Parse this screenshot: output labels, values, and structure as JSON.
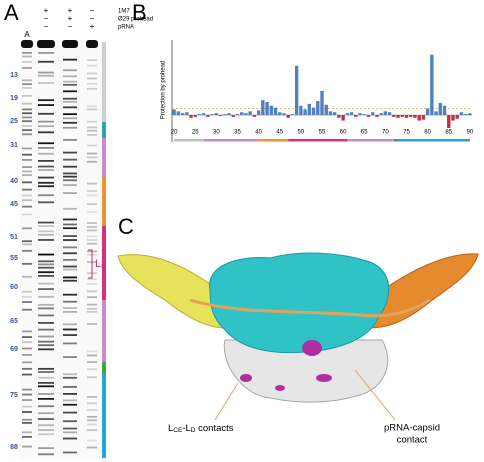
{
  "panels": {
    "a": "A",
    "b": "B",
    "c": "C"
  },
  "gel": {
    "conditions": [
      {
        "name": "1M7",
        "marks": [
          "+",
          "+",
          "−"
        ]
      },
      {
        "name": "Ø29 prohead",
        "marks": [
          "−",
          "+",
          "−"
        ]
      },
      {
        "name": "pRNA",
        "marks": [
          "−",
          "−",
          "+"
        ]
      }
    ],
    "ladder_label": "A",
    "positions": [
      {
        "label": "13"
      },
      {
        "label": "19"
      },
      {
        "label": "25"
      },
      {
        "label": "31"
      },
      {
        "label": "40"
      },
      {
        "label": "45"
      },
      {
        "label": "51"
      },
      {
        "label": "55"
      },
      {
        "label": "60"
      },
      {
        "label": "65"
      },
      {
        "label": "69"
      },
      {
        "label": "75"
      },
      {
        "label": "88"
      }
    ],
    "loop_label": {
      "main": "L",
      "sub": "E"
    }
  },
  "chart_data": {
    "type": "bar",
    "y_label": "Protection by prohead",
    "x": [
      20,
      21,
      22,
      23,
      24,
      25,
      26,
      27,
      28,
      29,
      30,
      31,
      32,
      33,
      34,
      35,
      36,
      37,
      38,
      39,
      40,
      41,
      42,
      43,
      44,
      45,
      46,
      47,
      48,
      49,
      50,
      51,
      52,
      53,
      54,
      55,
      56,
      57,
      58,
      59,
      60,
      61,
      62,
      63,
      64,
      65,
      66,
      67,
      68,
      69,
      70,
      71,
      72,
      73,
      74,
      75,
      76,
      77,
      78,
      79,
      80,
      81,
      82,
      83,
      84,
      85,
      86,
      87,
      88,
      89,
      90
    ],
    "values": [
      0.6,
      0.4,
      0.2,
      0.3,
      -0.3,
      -0.2,
      0.1,
      0.2,
      -0.2,
      0.1,
      0.2,
      -0.1,
      0.1,
      0.2,
      -0.2,
      0.1,
      0.3,
      0.2,
      0.4,
      -0.2,
      0.5,
      1.6,
      1.4,
      1.0,
      0.8,
      0.3,
      0.2,
      -0.3,
      0.1,
      5.3,
      1.0,
      0.6,
      1.2,
      0.8,
      1.5,
      2.6,
      1.1,
      0.4,
      0.3,
      -0.3,
      -0.6,
      0.2,
      0.3,
      -0.2,
      0.2,
      0.1,
      -0.2,
      0.3,
      -0.2,
      0.2,
      0.4,
      0.3,
      -0.2,
      -0.3,
      -0.2,
      -0.3,
      -0.2,
      -0.3,
      -0.6,
      -0.5,
      0.7,
      6.5,
      0.4,
      1.3,
      1.0,
      -1.4,
      -0.6,
      -0.4,
      0.3,
      0.1,
      0.2
    ],
    "positive_color": "#4f81bd",
    "negative_color": "#c0304a",
    "threshold": 0.7,
    "threshold_color": "#e8a040",
    "xlim": [
      19.5,
      90.5
    ],
    "ylim": [
      -2,
      7
    ],
    "xticks": [
      20,
      25,
      30,
      35,
      40,
      45,
      50,
      55,
      60,
      65,
      70,
      75,
      80,
      85,
      90
    ]
  },
  "structure": {
    "left_contact": {
      "a": "L",
      "sub_a": "CE",
      "b": "-L",
      "sub_b": "D",
      "tail": " contacts"
    },
    "right_contact": [
      "pRNA-capsid",
      "contact"
    ]
  }
}
